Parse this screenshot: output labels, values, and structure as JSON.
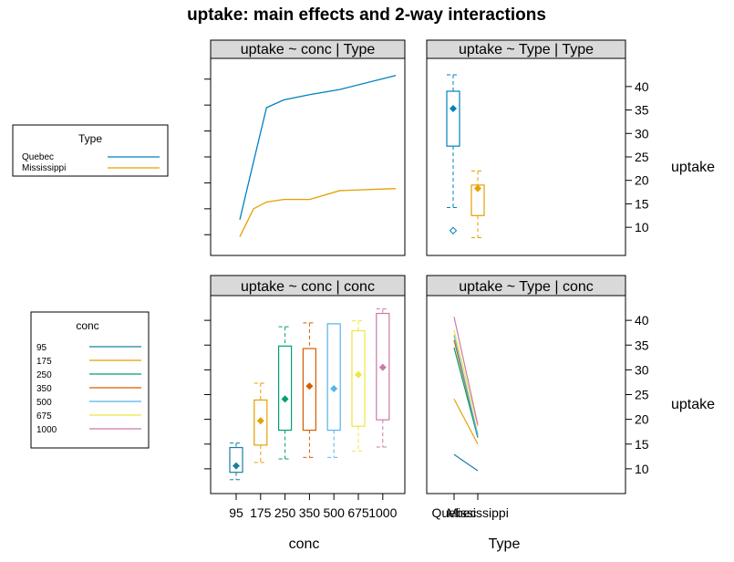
{
  "page": {
    "title": "uptake: main effects and 2-way interactions"
  },
  "colors": {
    "Quebec": "#0080c0",
    "Mississippi": "#e69f00",
    "95": "#1b7fa0",
    "175": "#e69f00",
    "250": "#009e73",
    "350": "#d55e00",
    "500": "#56b4e9",
    "675": "#f0e442",
    "1000": "#cc79a7"
  },
  "legends": {
    "type": {
      "title": "Type",
      "items": [
        "Quebec",
        "Mississippi"
      ]
    },
    "conc": {
      "title": "conc",
      "items": [
        "95",
        "175",
        "250",
        "350",
        "500",
        "675",
        "1000"
      ]
    }
  },
  "axes": {
    "conc_title": "conc",
    "type_title": "Type",
    "uptake_title": "uptake",
    "uptake_ticks": [
      10,
      15,
      20,
      25,
      30,
      35,
      40
    ],
    "conc_tick_labels": [
      "95",
      "175",
      "250",
      "350",
      "500",
      "675",
      "1000"
    ],
    "type_tick_labels": [
      "Quebec",
      "Mississippi"
    ]
  },
  "chart_data": [
    {
      "type": "line",
      "strip": "uptake ~ conc | Type",
      "xlabel": "",
      "ylabel": "",
      "ylim": [
        6,
        44
      ],
      "x": [
        95,
        175,
        250,
        350,
        500,
        675,
        1000
      ],
      "series": [
        {
          "name": "Quebec",
          "values": [
            12.9,
            24.1,
            34.5,
            36.0,
            37.0,
            38.0,
            40.7
          ]
        },
        {
          "name": "Mississippi",
          "values": [
            9.6,
            15.0,
            16.3,
            16.8,
            16.8,
            18.5,
            18.9
          ]
        }
      ]
    },
    {
      "type": "box",
      "strip": "uptake ~ Type | Type",
      "xlabel": "",
      "ylabel": "uptake",
      "ylim": [
        4,
        46
      ],
      "categories": [
        "Quebec",
        "Mississippi"
      ],
      "boxes": [
        {
          "name": "Quebec",
          "whisker_low": 14.2,
          "q1": 27.3,
          "median": 35.3,
          "q3": 39.0,
          "whisker_high": 42.5,
          "outliers": [
            9.3
          ]
        },
        {
          "name": "Mississippi",
          "whisker_low": 7.8,
          "q1": 12.5,
          "median": 18.3,
          "q3": 19.0,
          "whisker_high": 22.0,
          "outliers": []
        }
      ]
    },
    {
      "type": "box",
      "strip": "uptake ~ conc | conc",
      "xlabel": "conc",
      "ylabel": "",
      "ylim": [
        5,
        45
      ],
      "categories": [
        "95",
        "175",
        "250",
        "350",
        "500",
        "675",
        "1000"
      ],
      "boxes": [
        {
          "name": "95",
          "whisker_low": 7.8,
          "q1": 9.3,
          "median": 10.6,
          "q3": 14.3,
          "whisker_high": 15.2,
          "outliers": []
        },
        {
          "name": "175",
          "whisker_low": 11.3,
          "q1": 14.8,
          "median": 19.7,
          "q3": 23.9,
          "whisker_high": 27.3,
          "outliers": []
        },
        {
          "name": "250",
          "whisker_low": 12.0,
          "q1": 17.8,
          "median": 24.1,
          "q3": 34.8,
          "whisker_high": 38.7,
          "outliers": []
        },
        {
          "name": "350",
          "whisker_low": 12.3,
          "q1": 17.8,
          "median": 26.7,
          "q3": 34.3,
          "whisker_high": 39.5,
          "outliers": []
        },
        {
          "name": "500",
          "whisker_low": 12.3,
          "q1": 17.8,
          "median": 26.2,
          "q3": 39.3,
          "whisker_high": 39.3,
          "outliers": []
        },
        {
          "name": "675",
          "whisker_low": 13.6,
          "q1": 18.6,
          "median": 29.0,
          "q3": 37.9,
          "whisker_high": 39.9,
          "outliers": []
        },
        {
          "name": "1000",
          "whisker_low": 14.4,
          "q1": 19.9,
          "median": 30.5,
          "q3": 41.4,
          "whisker_high": 42.3,
          "outliers": []
        }
      ]
    },
    {
      "type": "line",
      "strip": "uptake ~ Type | conc",
      "xlabel": "Type",
      "ylabel": "uptake",
      "ylim": [
        5,
        45
      ],
      "categories": [
        "Quebec",
        "Mississippi"
      ],
      "series": [
        {
          "name": "95",
          "values": [
            12.9,
            9.6
          ]
        },
        {
          "name": "175",
          "values": [
            24.1,
            15.0
          ]
        },
        {
          "name": "250",
          "values": [
            34.5,
            16.3
          ]
        },
        {
          "name": "350",
          "values": [
            36.0,
            16.8
          ]
        },
        {
          "name": "500",
          "values": [
            37.0,
            16.8
          ]
        },
        {
          "name": "675",
          "values": [
            38.0,
            18.5
          ]
        },
        {
          "name": "1000",
          "values": [
            40.7,
            18.9
          ]
        }
      ]
    }
  ]
}
